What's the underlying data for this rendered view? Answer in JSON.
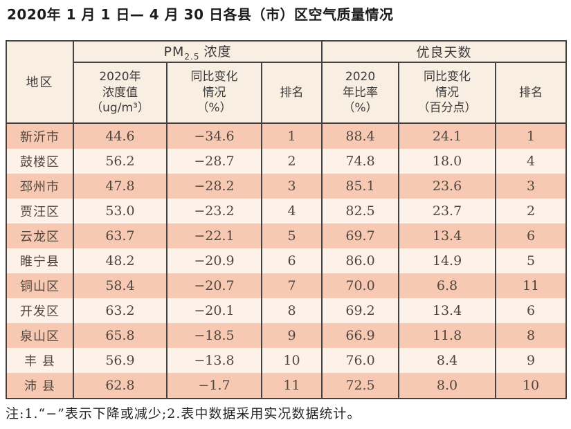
{
  "title": "2020年 1 月 1 日— 4 月 30 日各县（市）区空气质量情况",
  "note": "注:1.“−”表示下降或减少;2.表中数据采用实况数据统计。",
  "colors": {
    "row_odd": "#f8c9b2",
    "row_even": "#fdf2ea",
    "header_bg": "#f9eee2",
    "border": "#424242",
    "body_text": "#4f463f"
  },
  "chart_data": {
    "type": "table",
    "title": "2020年1月1日—4月30日各县（市）区空气质量情况",
    "corner_header": "地区",
    "column_groups": [
      {
        "name": "PM2.5浓度",
        "prefix": "PM",
        "subscript": "2.5",
        "suffix": "浓度"
      },
      {
        "name": "优良天数",
        "label": "优良天数"
      }
    ],
    "columns": [
      "2020年\n浓度值\n（ug/m³）",
      "同比变化\n情况\n（%）",
      "排名",
      "2020\n年比率\n（%）",
      "同比变化\n情况\n（百分点）",
      "排名"
    ],
    "rows": [
      {
        "region": "新沂市",
        "pm_value": "44.6",
        "pm_change": "−34.6",
        "pm_rank": "1",
        "rate": "88.4",
        "rate_change": "24.1",
        "rate_rank": "1"
      },
      {
        "region": "鼓楼区",
        "pm_value": "56.2",
        "pm_change": "−28.7",
        "pm_rank": "2",
        "rate": "74.8",
        "rate_change": "18.0",
        "rate_rank": "4"
      },
      {
        "region": "邳州市",
        "pm_value": "47.8",
        "pm_change": "−28.2",
        "pm_rank": "3",
        "rate": "85.1",
        "rate_change": "23.6",
        "rate_rank": "3"
      },
      {
        "region": "贾汪区",
        "pm_value": "53.0",
        "pm_change": "−23.2",
        "pm_rank": "4",
        "rate": "82.5",
        "rate_change": "23.7",
        "rate_rank": "2"
      },
      {
        "region": "云龙区",
        "pm_value": "63.7",
        "pm_change": "−22.1",
        "pm_rank": "5",
        "rate": "69.7",
        "rate_change": "13.4",
        "rate_rank": "6"
      },
      {
        "region": "睢宁县",
        "pm_value": "48.2",
        "pm_change": "−20.9",
        "pm_rank": "6",
        "rate": "86.0",
        "rate_change": "14.9",
        "rate_rank": "5"
      },
      {
        "region": "铜山区",
        "pm_value": "58.4",
        "pm_change": "−20.7",
        "pm_rank": "7",
        "rate": "70.0",
        "rate_change": "6.8",
        "rate_rank": "11"
      },
      {
        "region": "开发区",
        "pm_value": "63.2",
        "pm_change": "−20.1",
        "pm_rank": "8",
        "rate": "69.2",
        "rate_change": "13.4",
        "rate_rank": "6"
      },
      {
        "region": "泉山区",
        "pm_value": "65.8",
        "pm_change": "−18.5",
        "pm_rank": "9",
        "rate": "66.9",
        "rate_change": "11.8",
        "rate_rank": "8"
      },
      {
        "region": "丰 县",
        "pm_value": "56.9",
        "pm_change": "−13.8",
        "pm_rank": "10",
        "rate": "76.0",
        "rate_change": "8.4",
        "rate_rank": "9"
      },
      {
        "region": "沛 县",
        "pm_value": "62.8",
        "pm_change": "−1.7",
        "pm_rank": "11",
        "rate": "72.5",
        "rate_change": "8.0",
        "rate_rank": "10"
      }
    ]
  }
}
